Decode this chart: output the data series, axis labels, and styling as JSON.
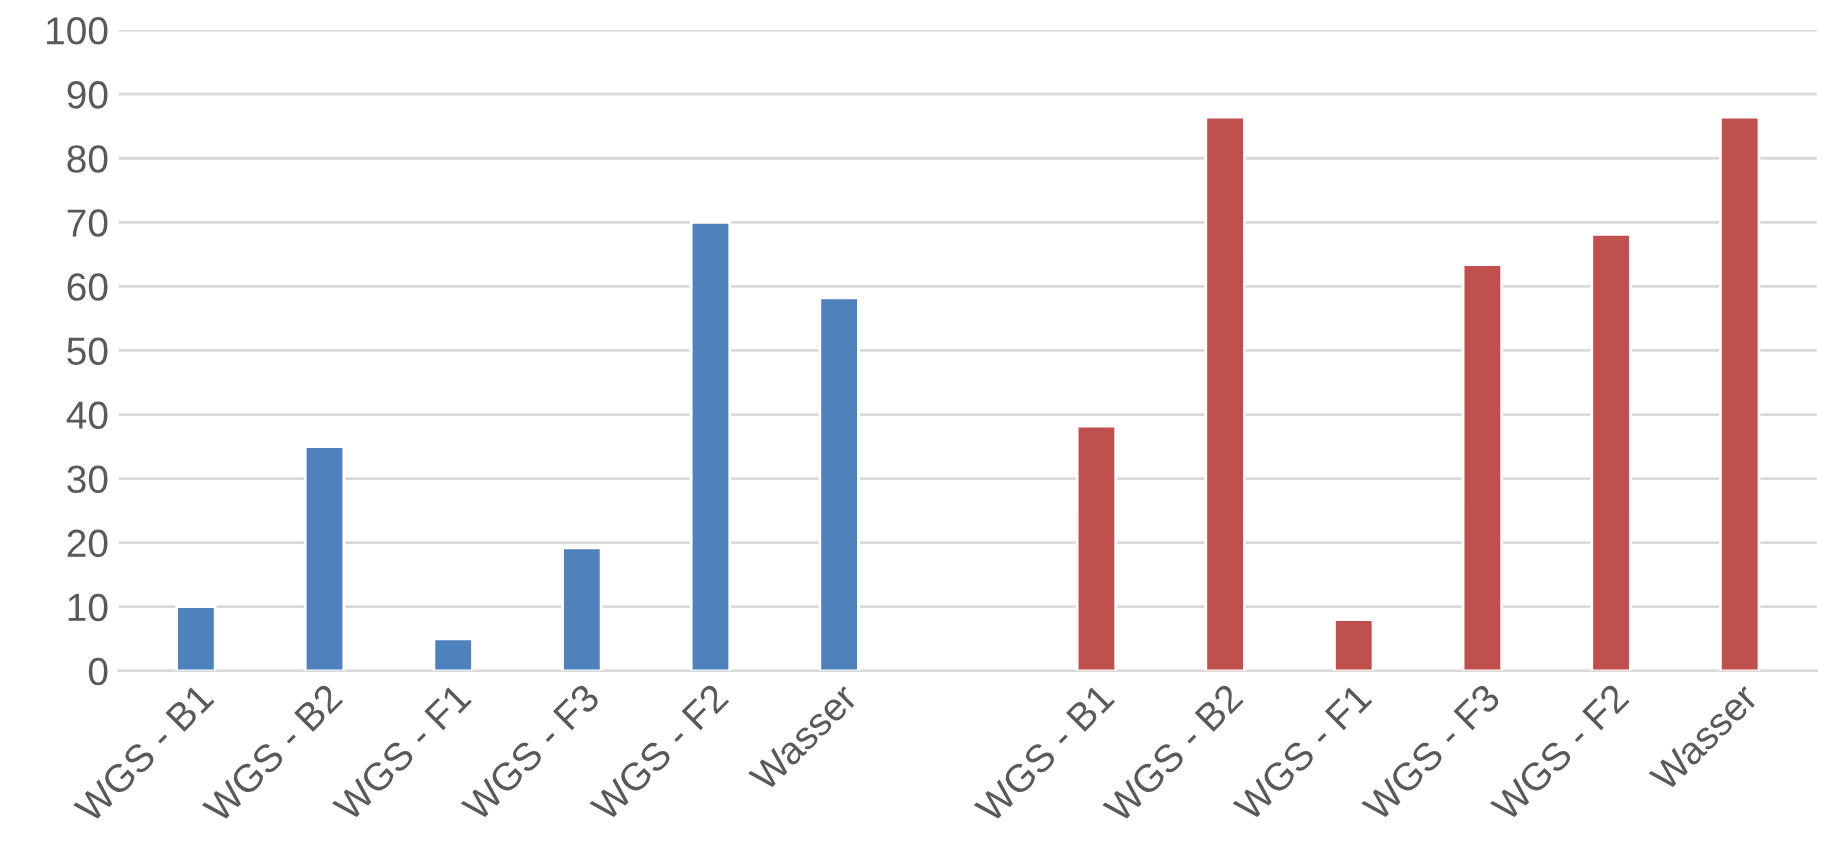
{
  "chart_data": {
    "type": "bar",
    "categories": [
      "WGS - B1",
      "WGS - B2",
      "WGS - F1",
      "WGS - F3",
      "WGS - F2",
      "Wasser",
      null,
      "WGS - B1",
      "WGS - B2",
      "WGS - F1",
      "WGS - F3",
      "WGS - F2",
      "Wasser"
    ],
    "series": [
      {
        "color": "#4f81bd",
        "values": [
          10,
          35,
          5,
          19.2,
          70,
          58.2,
          null,
          null,
          null,
          null,
          null,
          null,
          null
        ]
      },
      {
        "color": "#c0504d",
        "values": [
          null,
          null,
          null,
          null,
          null,
          null,
          null,
          38.2,
          86.4,
          8,
          63.4,
          68.1,
          86.4
        ]
      }
    ],
    "ylim": [
      0,
      100
    ],
    "yticks": [
      0,
      10,
      20,
      30,
      40,
      50,
      60,
      70,
      80,
      90,
      100
    ],
    "grid": "y",
    "legend": false
  }
}
